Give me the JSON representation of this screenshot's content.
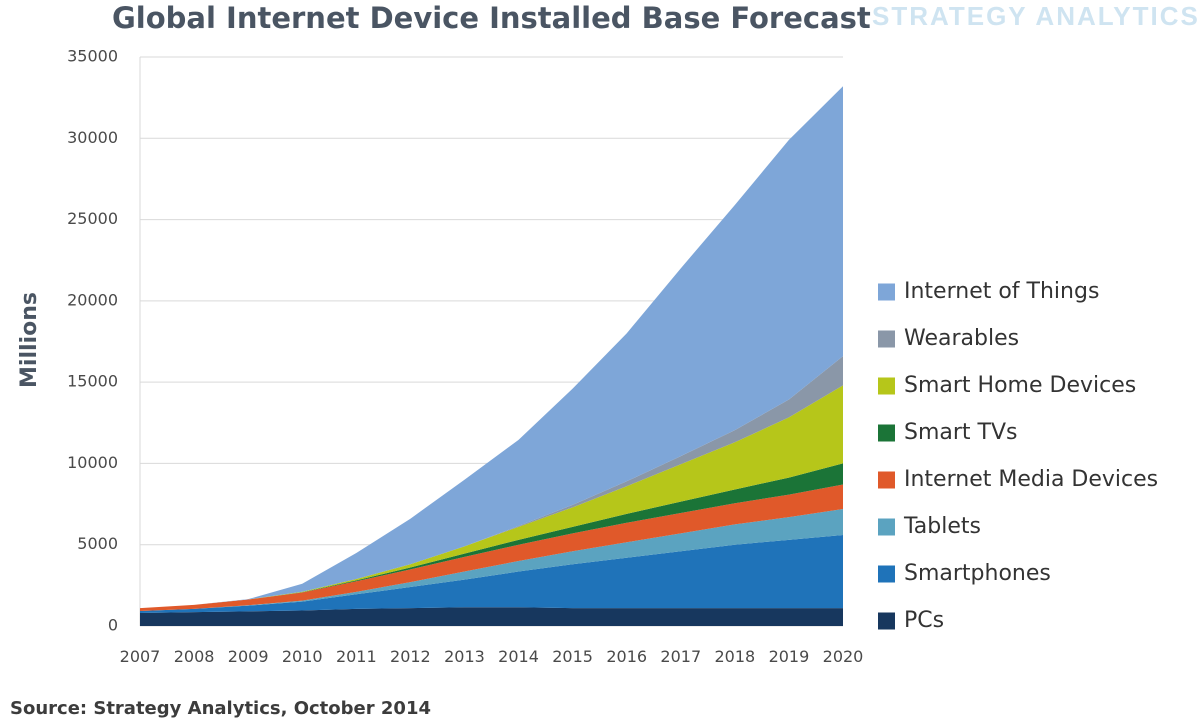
{
  "chart_data": {
    "type": "area",
    "stacked": true,
    "title": "Global Internet Device Installed Base Forecast",
    "watermark": "STRATEGY ANALYTICS",
    "ylabel": "Millions",
    "xlabel": "",
    "ylim": [
      0,
      35000
    ],
    "yticks": [
      0,
      5000,
      10000,
      15000,
      20000,
      25000,
      30000,
      35000
    ],
    "grid": true,
    "legend_position": "right",
    "categories": [
      "2007",
      "2008",
      "2009",
      "2010",
      "2011",
      "2012",
      "2013",
      "2014",
      "2015",
      "2016",
      "2017",
      "2018",
      "2019",
      "2020"
    ],
    "series": [
      {
        "name": "PCs",
        "color": "#17375e",
        "values": [
          800,
          850,
          900,
          950,
          1050,
          1100,
          1150,
          1150,
          1100,
          1100,
          1100,
          1100,
          1100,
          1100
        ]
      },
      {
        "name": "Smartphones",
        "color": "#1f73b9",
        "values": [
          120,
          200,
          350,
          550,
          900,
          1300,
          1700,
          2200,
          2700,
          3100,
          3500,
          3900,
          4200,
          4500
        ]
      },
      {
        "name": "Tablets",
        "color": "#5ba3c0",
        "values": [
          0,
          0,
          30,
          60,
          150,
          300,
          500,
          650,
          800,
          950,
          1100,
          1250,
          1400,
          1600
        ]
      },
      {
        "name": "Internet Media Devices",
        "color": "#e0592a",
        "values": [
          180,
          250,
          350,
          500,
          650,
          780,
          900,
          1000,
          1100,
          1200,
          1250,
          1300,
          1380,
          1500
        ]
      },
      {
        "name": "Smart TVs",
        "color": "#1b7437",
        "values": [
          0,
          0,
          0,
          20,
          60,
          120,
          200,
          300,
          400,
          550,
          700,
          850,
          1050,
          1300
        ]
      },
      {
        "name": "Smart Home Devices",
        "color": "#b6c61a",
        "values": [
          0,
          0,
          0,
          30,
          80,
          200,
          450,
          800,
          1200,
          1700,
          2300,
          2900,
          3700,
          4800
        ]
      },
      {
        "name": "Wearables",
        "color": "#8a97a8",
        "values": [
          0,
          0,
          0,
          0,
          0,
          0,
          0,
          50,
          150,
          300,
          500,
          750,
          1100,
          1800
        ]
      },
      {
        "name": "Internet of Things",
        "color": "#7ea6d8",
        "values": [
          0,
          0,
          20,
          490,
          1600,
          2800,
          4100,
          5300,
          7150,
          9100,
          11550,
          13850,
          15970,
          16600
        ]
      }
    ]
  },
  "source_note": "Source: Strategy Analytics, October 2014"
}
